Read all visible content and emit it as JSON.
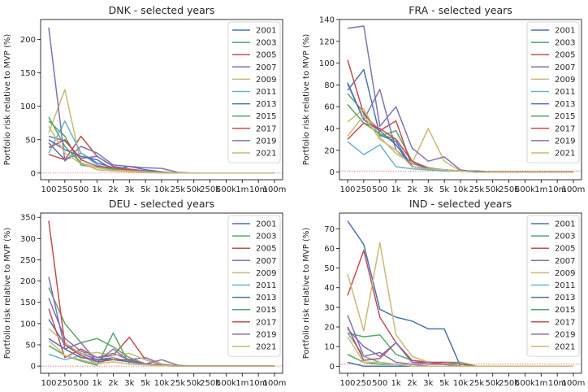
{
  "chart_data": [
    {
      "type": "line",
      "title": "DNK - selected years",
      "ylabel": "Portfolio risk relative to MVP (%)",
      "xlabel": "",
      "categories": [
        "100",
        "250",
        "500",
        "1k",
        "2k",
        "3k",
        "5k",
        "10k",
        "25k",
        "50k",
        "250k",
        "500k",
        "1m",
        "10m",
        "100m"
      ],
      "ylim": [
        -10,
        230
      ],
      "yticks": [
        0,
        50,
        100,
        150,
        200
      ],
      "ref_line": 0,
      "grid": false,
      "legend": "top-right",
      "series": [
        {
          "name": "2001",
          "color": "#4c72b0",
          "values": [
            45,
            20,
            30,
            15,
            8,
            5,
            3,
            1,
            0,
            0,
            0,
            0,
            0,
            0,
            0
          ]
        },
        {
          "name": "2003",
          "color": "#55a868",
          "values": [
            78,
            55,
            12,
            8,
            5,
            3,
            2,
            1,
            0,
            0,
            0,
            0,
            0,
            0,
            0
          ]
        },
        {
          "name": "2005",
          "color": "#c44e52",
          "values": [
            28,
            20,
            55,
            25,
            10,
            6,
            3,
            1,
            0,
            0,
            0,
            0,
            0,
            0,
            0
          ]
        },
        {
          "name": "2007",
          "color": "#8172b2",
          "values": [
            55,
            48,
            22,
            25,
            10,
            5,
            3,
            1,
            0,
            0,
            0,
            0,
            0,
            0,
            0
          ]
        },
        {
          "name": "2009",
          "color": "#ccb974",
          "values": [
            60,
            125,
            15,
            5,
            3,
            2,
            1,
            0,
            0,
            0,
            0,
            0,
            0,
            0,
            0
          ]
        },
        {
          "name": "2011",
          "color": "#64b5cd",
          "values": [
            30,
            78,
            30,
            12,
            5,
            3,
            2,
            1,
            0,
            0,
            0,
            0,
            0,
            0,
            0
          ]
        },
        {
          "name": "2013",
          "color": "#4c72b0",
          "values": [
            50,
            35,
            25,
            20,
            5,
            10,
            5,
            2,
            0,
            0,
            0,
            0,
            0,
            0,
            0
          ]
        },
        {
          "name": "2015",
          "color": "#55a868",
          "values": [
            84,
            40,
            15,
            8,
            6,
            4,
            2,
            1,
            0,
            0,
            0,
            0,
            0,
            0,
            0
          ]
        },
        {
          "name": "2017",
          "color": "#c44e52",
          "values": [
            38,
            50,
            20,
            10,
            8,
            5,
            2,
            1,
            0,
            0,
            0,
            0,
            0,
            0,
            0
          ]
        },
        {
          "name": "2019",
          "color": "#8172b2",
          "values": [
            218,
            18,
            40,
            30,
            12,
            10,
            8,
            7,
            1,
            0,
            0,
            0,
            0,
            0,
            0
          ]
        },
        {
          "name": "2021",
          "color": "#ccb974",
          "values": [
            70,
            30,
            14,
            8,
            4,
            3,
            2,
            1,
            0,
            0,
            0,
            0,
            0,
            0,
            0
          ]
        }
      ]
    },
    {
      "type": "line",
      "title": "FRA - selected years",
      "ylabel": "Portfolio risk relative to MVP (%)",
      "xlabel": "",
      "categories": [
        "100",
        "250",
        "500",
        "1k",
        "2k",
        "3k",
        "5k",
        "10k",
        "25k",
        "50k",
        "250k",
        "500k",
        "1m",
        "10m",
        "100m"
      ],
      "ylim": [
        -7,
        140
      ],
      "yticks": [
        0,
        20,
        40,
        60,
        80,
        100,
        120,
        140
      ],
      "ref_line": 1,
      "grid": false,
      "legend": "top-right",
      "series": [
        {
          "name": "2001",
          "color": "#4c72b0",
          "values": [
            75,
            94,
            34,
            28,
            5,
            3,
            2,
            1,
            0,
            0,
            0,
            0,
            0,
            0,
            0
          ]
        },
        {
          "name": "2003",
          "color": "#55a868",
          "values": [
            72,
            55,
            33,
            38,
            10,
            3,
            2,
            1,
            0,
            0,
            0,
            0,
            0,
            0,
            0
          ]
        },
        {
          "name": "2005",
          "color": "#c44e52",
          "values": [
            103,
            53,
            38,
            47,
            5,
            3,
            2,
            1,
            0,
            0,
            0,
            0,
            0,
            0,
            0
          ]
        },
        {
          "name": "2007",
          "color": "#8172b2",
          "values": [
            81,
            48,
            76,
            20,
            8,
            3,
            2,
            1,
            0,
            0,
            0,
            0,
            0,
            0,
            0
          ]
        },
        {
          "name": "2009",
          "color": "#ccb974",
          "values": [
            46,
            58,
            32,
            17,
            8,
            40,
            10,
            1,
            0,
            0,
            0,
            0,
            0,
            0,
            0
          ]
        },
        {
          "name": "2011",
          "color": "#64b5cd",
          "values": [
            28,
            16,
            25,
            5,
            3,
            2,
            1,
            1,
            0,
            0,
            0,
            0,
            0,
            0,
            0
          ]
        },
        {
          "name": "2013",
          "color": "#4c72b0",
          "values": [
            82,
            48,
            38,
            25,
            5,
            3,
            2,
            1,
            1,
            0,
            0,
            0,
            0,
            0,
            0
          ]
        },
        {
          "name": "2015",
          "color": "#55a868",
          "values": [
            62,
            45,
            35,
            30,
            10,
            4,
            2,
            1,
            0,
            0,
            0,
            0,
            0,
            0,
            0
          ]
        },
        {
          "name": "2017",
          "color": "#c44e52",
          "values": [
            30,
            45,
            40,
            30,
            10,
            3,
            2,
            1,
            0,
            0,
            0,
            0,
            0,
            0,
            0
          ]
        },
        {
          "name": "2019",
          "color": "#8172b2",
          "values": [
            132,
            134,
            42,
            60,
            22,
            10,
            14,
            2,
            0,
            0,
            0,
            0,
            0,
            0,
            0
          ]
        },
        {
          "name": "2021",
          "color": "#ccb974",
          "values": [
            33,
            52,
            30,
            20,
            5,
            3,
            2,
            1,
            0,
            0,
            0,
            0,
            0,
            0,
            0
          ]
        }
      ]
    },
    {
      "type": "line",
      "title": "DEU - selected years",
      "ylabel": "Portfolio risk relative to MVP (%)",
      "xlabel": "",
      "categories": [
        "100",
        "250",
        "500",
        "1k",
        "2k",
        "3k",
        "5k",
        "10k",
        "25k",
        "50k",
        "250k",
        "500k",
        "1m",
        "10m",
        "100m"
      ],
      "ylim": [
        -17,
        360
      ],
      "yticks": [
        0,
        50,
        100,
        150,
        200,
        250,
        300,
        350
      ],
      "ref_line": 0,
      "grid": false,
      "legend": "top-right",
      "series": [
        {
          "name": "2001",
          "color": "#4c72b0",
          "values": [
            110,
            50,
            30,
            15,
            20,
            10,
            5,
            2,
            0,
            0,
            0,
            0,
            0,
            0,
            0
          ]
        },
        {
          "name": "2003",
          "color": "#55a868",
          "values": [
            185,
            100,
            55,
            65,
            45,
            20,
            5,
            2,
            1,
            0,
            0,
            0,
            0,
            0,
            0
          ]
        },
        {
          "name": "2005",
          "color": "#c44e52",
          "values": [
            135,
            20,
            40,
            20,
            25,
            68,
            15,
            3,
            1,
            0,
            0,
            0,
            0,
            0,
            0
          ]
        },
        {
          "name": "2007",
          "color": "#8172b2",
          "values": [
            160,
            65,
            35,
            20,
            30,
            15,
            20,
            5,
            1,
            0,
            0,
            0,
            0,
            0,
            0
          ]
        },
        {
          "name": "2009",
          "color": "#ccb974",
          "values": [
            88,
            55,
            28,
            32,
            25,
            30,
            15,
            5,
            1,
            0,
            0,
            0,
            0,
            0,
            0
          ]
        },
        {
          "name": "2011",
          "color": "#64b5cd",
          "values": [
            28,
            15,
            25,
            5,
            20,
            10,
            5,
            2,
            0,
            0,
            0,
            0,
            0,
            0,
            0
          ]
        },
        {
          "name": "2013",
          "color": "#4c72b0",
          "values": [
            65,
            40,
            20,
            15,
            15,
            10,
            5,
            2,
            0,
            0,
            0,
            0,
            0,
            0,
            0
          ]
        },
        {
          "name": "2015",
          "color": "#55a868",
          "values": [
            48,
            25,
            12,
            2,
            78,
            5,
            3,
            1,
            0,
            0,
            0,
            0,
            0,
            0,
            0
          ]
        },
        {
          "name": "2017",
          "color": "#c44e52",
          "values": [
            342,
            50,
            25,
            10,
            15,
            15,
            5,
            2,
            0,
            0,
            0,
            0,
            0,
            0,
            0
          ]
        },
        {
          "name": "2019",
          "color": "#8172b2",
          "values": [
            210,
            40,
            55,
            10,
            40,
            12,
            5,
            15,
            2,
            0,
            0,
            0,
            0,
            0,
            0
          ]
        },
        {
          "name": "2021",
          "color": "#ccb974",
          "values": [
            60,
            25,
            15,
            5,
            10,
            5,
            3,
            1,
            0,
            0,
            0,
            0,
            0,
            0,
            0
          ]
        }
      ]
    },
    {
      "type": "line",
      "title": "IND - selected years",
      "ylabel": "Portfolio risk relative to MVP (%)",
      "xlabel": "",
      "categories": [
        "100",
        "250",
        "500",
        "1k",
        "2k",
        "3k",
        "5k",
        "10k",
        "25k",
        "50k",
        "250k",
        "500k",
        "1m",
        "10m",
        "100m"
      ],
      "ylim": [
        -3.6,
        78
      ],
      "yticks": [
        0,
        10,
        20,
        30,
        40,
        50,
        60,
        70
      ],
      "ref_line": 1,
      "grid": false,
      "legend": "top-right",
      "series": [
        {
          "name": "2001",
          "color": "#4c72b0",
          "values": [
            74,
            62,
            29,
            25,
            23,
            19,
            19,
            0,
            0,
            0,
            0,
            0,
            0,
            0,
            0
          ]
        },
        {
          "name": "2003",
          "color": "#55a868",
          "values": [
            17,
            15,
            16,
            6,
            3,
            2,
            2,
            2,
            0,
            0,
            0,
            0,
            0,
            0,
            0
          ]
        },
        {
          "name": "2005",
          "color": "#c44e52",
          "values": [
            36,
            59,
            25,
            12,
            3,
            2,
            2,
            1,
            0,
            0,
            0,
            0,
            0,
            0,
            0
          ]
        },
        {
          "name": "2007",
          "color": "#8172b2",
          "values": [
            26,
            5,
            7,
            2,
            1,
            0,
            0,
            0,
            0,
            0,
            0,
            0,
            0,
            0,
            0
          ]
        },
        {
          "name": "2009",
          "color": "#ccb974",
          "values": [
            47,
            18,
            63,
            16,
            5,
            2,
            1,
            0,
            0,
            0,
            0,
            0,
            0,
            0,
            0
          ]
        },
        {
          "name": "2011",
          "color": "#64b5cd",
          "values": [
            17,
            5,
            2,
            1,
            0,
            0,
            0,
            0,
            0,
            0,
            0,
            0,
            0,
            0,
            0
          ]
        },
        {
          "name": "2013",
          "color": "#4c72b0",
          "values": [
            2,
            0,
            0,
            0,
            0,
            0,
            0,
            0,
            0,
            0,
            0,
            0,
            0,
            0,
            0
          ]
        },
        {
          "name": "2015",
          "color": "#55a868",
          "values": [
            6,
            2,
            1,
            1,
            0,
            0,
            0,
            0,
            0,
            0,
            0,
            0,
            0,
            0,
            0
          ]
        },
        {
          "name": "2017",
          "color": "#c44e52",
          "values": [
            20,
            3,
            4,
            12,
            2,
            2,
            1,
            0,
            0,
            0,
            0,
            0,
            0,
            0,
            0
          ]
        },
        {
          "name": "2019",
          "color": "#8172b2",
          "values": [
            19,
            10,
            5,
            12,
            2,
            1,
            1,
            0,
            0,
            0,
            0,
            0,
            0,
            0,
            0
          ]
        },
        {
          "name": "2021",
          "color": "#ccb974",
          "values": [
            15,
            2,
            2,
            1,
            0,
            0,
            0,
            0,
            0,
            0,
            0,
            0,
            0,
            0,
            0
          ]
        }
      ]
    }
  ]
}
